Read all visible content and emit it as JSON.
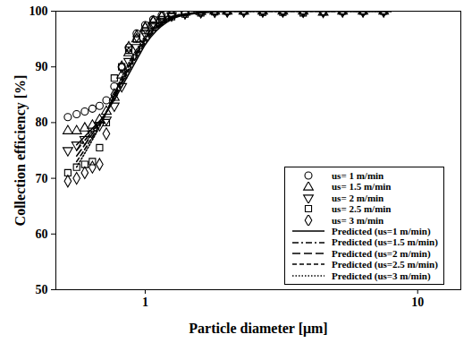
{
  "chart_data": {
    "type": "scatter",
    "xlabel": "Particle diameter [μm]",
    "ylabel": "Collection efficiency [%]",
    "log": "x",
    "xlim": [
      0.47,
      14.4
    ],
    "xticks": [
      1,
      10
    ],
    "ylim": [
      50,
      100
    ],
    "yticks": [
      50,
      60,
      70,
      80,
      90,
      100
    ],
    "legend": "lower right",
    "series": [
      {
        "name": "us= 1 m/min",
        "type": "scatter",
        "marker": "circle",
        "color": "#000000",
        "x": [
          0.52,
          0.56,
          0.6,
          0.64,
          0.68,
          0.72,
          0.77,
          0.82,
          0.87,
          0.93,
          1.0,
          1.07,
          1.15,
          1.25,
          1.4,
          1.6,
          1.8,
          2.0,
          2.3,
          2.7,
          3.2,
          3.8,
          4.5,
          5.3,
          6.3,
          7.5
        ],
        "values": [
          81,
          81.5,
          82,
          82.5,
          83,
          84,
          86.5,
          90,
          93.5,
          96,
          97.5,
          98.5,
          99.3,
          99.7,
          99.9,
          100,
          100,
          100,
          100,
          100,
          100,
          100,
          100,
          100,
          100,
          100
        ]
      },
      {
        "name": "us= 1.5 m/min",
        "type": "scatter",
        "marker": "triangle",
        "color": "#000000",
        "x": [
          0.52,
          0.56,
          0.6,
          0.64,
          0.68,
          0.72,
          0.77,
          0.82,
          0.87,
          0.93,
          1.0,
          1.07,
          1.15,
          1.25,
          1.4,
          1.6,
          1.8,
          2.0,
          2.3,
          2.7,
          3.2,
          3.8,
          4.5,
          5.3,
          6.3,
          7.5
        ],
        "values": [
          78.5,
          78.5,
          79,
          79.5,
          80.5,
          82,
          84.5,
          88.5,
          92.5,
          95,
          97,
          98.2,
          99,
          99.5,
          99.8,
          99.9,
          100,
          100,
          100,
          100,
          100,
          100,
          99.8,
          100,
          100,
          100
        ]
      },
      {
        "name": "us= 2 m/min",
        "type": "scatter",
        "marker": "triangle-down",
        "color": "#000000",
        "x": [
          0.52,
          0.56,
          0.6,
          0.64,
          0.68,
          0.72,
          0.77,
          0.82,
          0.87,
          0.93,
          1.0,
          1.07,
          1.15,
          1.25,
          1.4,
          1.6,
          1.8,
          2.0,
          2.3,
          2.7,
          3.2,
          3.8,
          4.5,
          5.3,
          6.3,
          7.5
        ],
        "values": [
          75,
          76,
          77,
          78,
          79.5,
          80.5,
          83,
          86.5,
          91,
          93.5,
          96,
          97.5,
          98.5,
          99.2,
          99.6,
          99.8,
          99.9,
          100,
          100,
          100,
          100,
          99.9,
          100,
          100,
          100,
          100
        ]
      },
      {
        "name": "us= 2.5 m/min",
        "type": "scatter",
        "marker": "square",
        "color": "#000000",
        "x": [
          0.52,
          0.56,
          0.6,
          0.64,
          0.68,
          0.72,
          0.77,
          0.82,
          0.87,
          0.93,
          1.0,
          1.07,
          1.15,
          1.25,
          1.4,
          1.6,
          1.8,
          2.0,
          2.3,
          2.7,
          3.2,
          3.8,
          4.5,
          5.3,
          6.3,
          7.5
        ],
        "values": [
          71,
          72,
          72.5,
          73,
          75.5,
          80,
          88,
          90,
          93,
          95,
          96.5,
          97.5,
          98.5,
          99,
          99.5,
          99.7,
          99.9,
          100,
          100,
          99.8,
          99.8,
          99.7,
          99.9,
          100,
          100,
          100
        ]
      },
      {
        "name": "us= 3 m/min",
        "type": "scatter",
        "marker": "diamond",
        "color": "#000000",
        "x": [
          0.52,
          0.56,
          0.6,
          0.64,
          0.68,
          0.72,
          0.77,
          0.82,
          0.87,
          0.93,
          1.0,
          1.07,
          1.15,
          1.25,
          1.4,
          1.6,
          1.8,
          2.0,
          2.3,
          2.7,
          3.2,
          3.8,
          4.5,
          5.3,
          6.3,
          7.5
        ],
        "values": [
          69.5,
          70,
          71,
          72,
          72.5,
          78,
          85,
          90,
          93.5,
          95.5,
          97,
          98,
          99,
          99.4,
          99.7,
          99.9,
          100,
          100,
          100,
          100,
          100,
          100,
          99.9,
          100,
          100,
          100
        ]
      },
      {
        "name": "Predicted (us=1 m/min)",
        "type": "line",
        "line_style": "solid",
        "color": "#000000",
        "x": [
          0.56,
          0.6,
          0.65,
          0.7,
          0.75,
          0.8,
          0.85,
          0.9,
          0.95,
          1.0,
          1.1,
          1.2,
          1.3,
          1.4,
          1.6,
          1.8,
          2.0,
          3.0,
          5.0,
          8.0
        ],
        "values": [
          76,
          77.5,
          79.3,
          81,
          83.2,
          85.5,
          87.8,
          90,
          92.1,
          94,
          96.5,
          98,
          98.9,
          99.3,
          99.7,
          99.9,
          100,
          100,
          100,
          100
        ]
      },
      {
        "name": "Predicted (us=1.5 m/min)",
        "type": "line",
        "line_style": "dashdot",
        "color": "#000000",
        "x": [
          0.56,
          0.6,
          0.65,
          0.7,
          0.75,
          0.8,
          0.85,
          0.9,
          0.95,
          1.0,
          1.1,
          1.2,
          1.3,
          1.4,
          1.6,
          1.8,
          2.0,
          3.0,
          5.0,
          8.0
        ],
        "values": [
          75,
          76.8,
          78.9,
          81,
          83.5,
          86,
          88.4,
          90.6,
          92.6,
          94.4,
          96.8,
          98.2,
          99,
          99.4,
          99.75,
          99.9,
          100,
          100,
          100,
          100
        ]
      },
      {
        "name": "Predicted (us=2 m/min)",
        "type": "line",
        "line_style": "longdash",
        "color": "#000000",
        "x": [
          0.56,
          0.6,
          0.65,
          0.7,
          0.75,
          0.8,
          0.85,
          0.9,
          0.95,
          1.0,
          1.1,
          1.2,
          1.3,
          1.4,
          1.6,
          1.8,
          2.0,
          3.0,
          5.0,
          8.0
        ],
        "values": [
          74,
          76,
          78.5,
          80.8,
          83.6,
          86.3,
          88.8,
          91,
          93,
          94.8,
          97,
          98.3,
          99.1,
          99.45,
          99.8,
          99.9,
          100,
          100,
          100,
          100
        ]
      },
      {
        "name": "Predicted (us=2.5 m/min)",
        "type": "line",
        "line_style": "dashed",
        "color": "#000000",
        "x": [
          0.56,
          0.6,
          0.65,
          0.7,
          0.75,
          0.8,
          0.85,
          0.9,
          0.95,
          1.0,
          1.1,
          1.2,
          1.3,
          1.4,
          1.6,
          1.8,
          2.0,
          3.0,
          5.0,
          8.0
        ],
        "values": [
          73,
          75.2,
          78,
          80.6,
          83.7,
          86.6,
          89.2,
          91.5,
          93.4,
          95.1,
          97.2,
          98.4,
          99.2,
          99.5,
          99.8,
          99.95,
          100,
          100,
          100,
          100
        ]
      },
      {
        "name": "Predicted (us=3 m/min)",
        "type": "line",
        "line_style": "dotted",
        "color": "#000000",
        "x": [
          0.56,
          0.6,
          0.65,
          0.7,
          0.75,
          0.8,
          0.85,
          0.9,
          0.95,
          1.0,
          1.1,
          1.2,
          1.3,
          1.4,
          1.6,
          1.8,
          2.0,
          3.0,
          5.0,
          8.0
        ],
        "values": [
          72,
          74.5,
          77.5,
          80.5,
          83.8,
          87,
          89.7,
          92,
          93.8,
          95.5,
          97.5,
          98.6,
          99.3,
          99.5,
          99.85,
          99.95,
          100,
          100,
          100,
          100
        ]
      }
    ]
  }
}
